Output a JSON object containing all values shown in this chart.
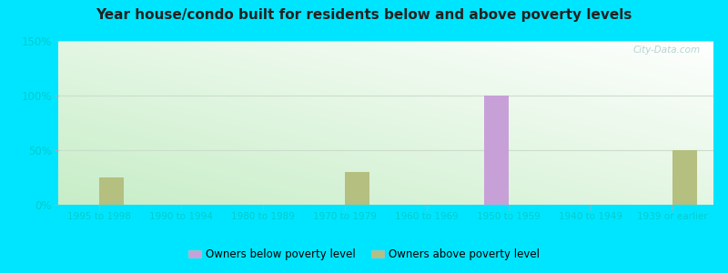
{
  "title": "Year house/condo built for residents below and above poverty levels",
  "categories": [
    "1995 to 1998",
    "1990 to 1994",
    "1980 to 1989",
    "1970 to 1979",
    "1960 to 1969",
    "1950 to 1959",
    "1940 to 1949",
    "1939 or earlier"
  ],
  "below_poverty": [
    0,
    0,
    0,
    0,
    0,
    100,
    0,
    0
  ],
  "above_poverty": [
    25,
    0,
    0,
    30,
    0,
    0,
    0,
    50
  ],
  "below_color": "#c8a0d8",
  "above_color": "#b5bf80",
  "ylim": [
    0,
    150
  ],
  "yticks": [
    0,
    50,
    100,
    150
  ],
  "ytick_labels": [
    "0%",
    "50%",
    "100%",
    "150%"
  ],
  "outer_background": "#00e5ff",
  "legend_below_label": "Owners below poverty level",
  "legend_above_label": "Owners above poverty level",
  "bar_width": 0.3,
  "grid_color": "#dddddd",
  "watermark": "City-Data.com",
  "title_color": "#222222",
  "tick_label_color": "#00cccc"
}
